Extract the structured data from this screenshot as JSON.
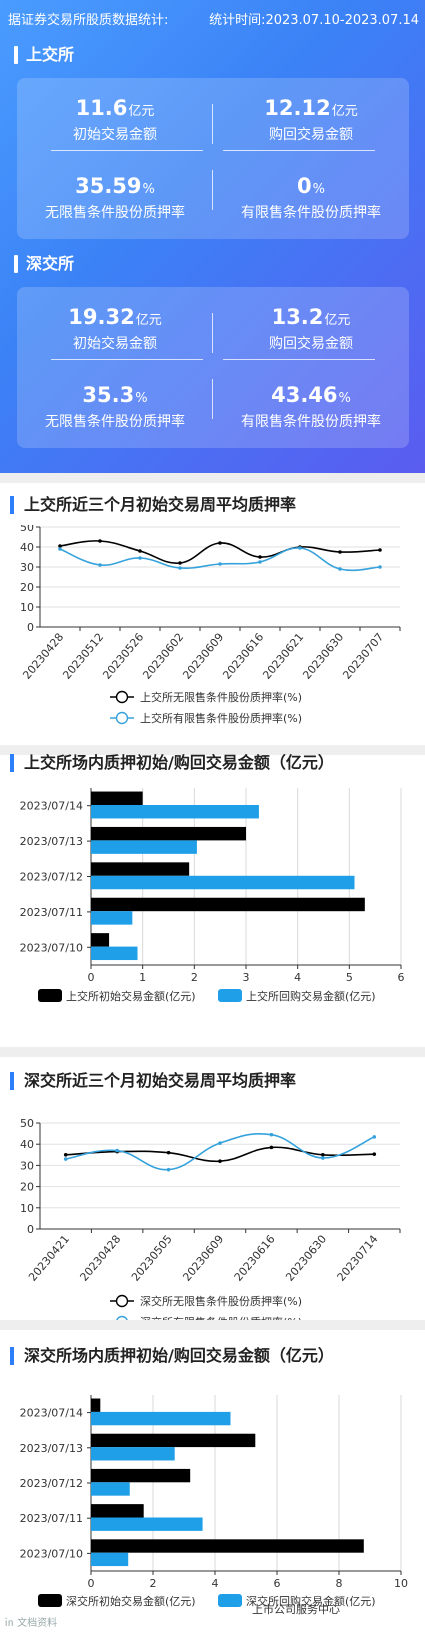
{
  "header": {
    "source": "据证券交易所股质数据统计:",
    "period": "统计时间:2023.07.10-2023.07.14",
    "sse": {
      "title": "上交所",
      "stats": [
        {
          "value": "11.6",
          "unit": "亿元",
          "label": "初始交易金额"
        },
        {
          "value": "12.12",
          "unit": "亿元",
          "label": "购回交易金额"
        },
        {
          "value": "35.59",
          "unit": "%",
          "label": "无限售条件股份质押率"
        },
        {
          "value": "0",
          "unit": "%",
          "label": "有限售条件股份质押率"
        }
      ]
    },
    "szse": {
      "title": "深交所",
      "stats": [
        {
          "value": "19.32",
          "unit": "亿元",
          "label": "初始交易金额"
        },
        {
          "value": "13.2",
          "unit": "亿元",
          "label": "购回交易金额"
        },
        {
          "value": "35.3",
          "unit": "%",
          "label": "无限售条件股份质押率"
        },
        {
          "value": "43.46",
          "unit": "%",
          "label": "有限售条件股份质押率"
        }
      ]
    }
  },
  "chart_data": [
    {
      "type": "line",
      "title": "上交所近三个月初始交易周平均质押率",
      "categories": [
        "20230428",
        "20230512",
        "20230526",
        "20230602",
        "20230609",
        "20230616",
        "20230621",
        "20230630",
        "20230707"
      ],
      "ylim": [
        0,
        50
      ],
      "yticks": [
        0,
        10,
        20,
        30,
        40,
        50
      ],
      "series": [
        {
          "name": "上交所无限售条件股份质押率(%)",
          "color": "#000000",
          "values": [
            40.5,
            43,
            38,
            32,
            42,
            35,
            40,
            37.5,
            38.5
          ]
        },
        {
          "name": "上交所有限售条件股份质押率(%)",
          "color": "#35a2dc",
          "values": [
            39,
            31,
            34.5,
            29.5,
            31.5,
            32.5,
            39.5,
            29,
            30
          ]
        }
      ],
      "grid": true,
      "legend": "bottom"
    },
    {
      "type": "bar",
      "title": "上交所场内质押初始/购回交易金额（亿元）",
      "categories": [
        "2023/07/14",
        "2023/07/13",
        "2023/07/12",
        "2023/07/11",
        "2023/07/10"
      ],
      "xlim": [
        0,
        6
      ],
      "xticks": [
        0,
        1,
        2,
        3,
        4,
        5,
        6
      ],
      "series": [
        {
          "name": "上交所初始交易金额(亿元)",
          "color": "#000000",
          "values": [
            1.0,
            3.0,
            1.9,
            5.3,
            0.35
          ]
        },
        {
          "name": "上交所回购交易金额(亿元)",
          "color": "#1e9fe8",
          "values": [
            3.25,
            2.05,
            5.1,
            0.8,
            0.9
          ]
        }
      ],
      "orientation": "horizontal",
      "legend": "bottom"
    },
    {
      "type": "line",
      "title": "深交所近三个月初始交易周平均质押率",
      "categories": [
        "20230421",
        "20230428",
        "20230505",
        "20230609",
        "20230616",
        "20230630",
        "20230714"
      ],
      "ylim": [
        0,
        50
      ],
      "yticks": [
        0,
        10,
        20,
        30,
        40,
        50
      ],
      "series": [
        {
          "name": "深交所无限售条件股份质押率(%)",
          "color": "#000000",
          "values": [
            35,
            36.5,
            36,
            32,
            38.5,
            35,
            35.3
          ]
        },
        {
          "name": "深交所有限售条件股份质押率(%)",
          "color": "#35a2dc",
          "values": [
            33,
            37,
            28,
            40.5,
            44.5,
            33.5,
            43.46
          ]
        }
      ],
      "grid": true,
      "legend": "bottom"
    },
    {
      "type": "bar",
      "title": "深交所场内质押初始/购回交易金额（亿元）",
      "categories": [
        "2023/07/14",
        "2023/07/13",
        "2023/07/12",
        "2023/07/11",
        "2023/07/10"
      ],
      "xlim": [
        0,
        10
      ],
      "xticks": [
        0,
        2,
        4,
        6,
        8,
        10
      ],
      "series": [
        {
          "name": "深交所初始交易金额(亿元)",
          "color": "#000000",
          "values": [
            0.3,
            5.3,
            3.2,
            1.7,
            8.8
          ]
        },
        {
          "name": "深交所回购交易金额(亿元)",
          "color": "#1e9fe8",
          "values": [
            4.5,
            2.7,
            1.25,
            3.6,
            1.2
          ]
        }
      ],
      "orientation": "horizontal",
      "legend": "bottom"
    }
  ],
  "footer": {
    "left_watermark": "㏌ 文档资料",
    "right_watermark": "上市公司服务中心"
  }
}
